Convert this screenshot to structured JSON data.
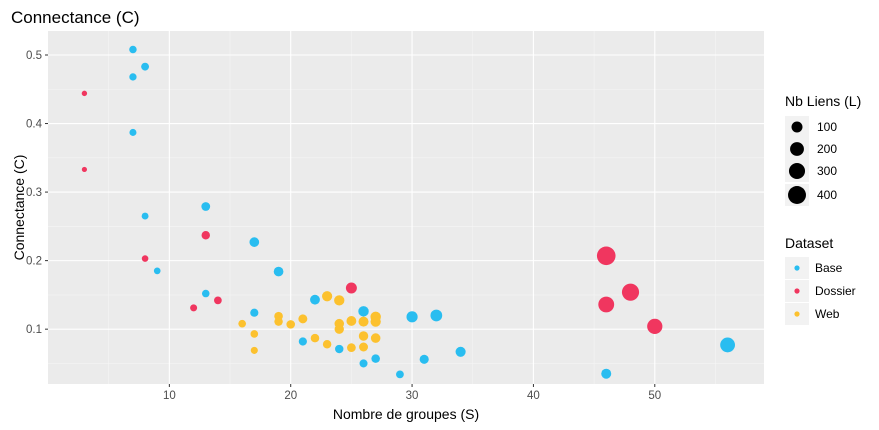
{
  "chart_data": {
    "type": "scatter",
    "title": "Connectance (C)",
    "xlabel": "Nombre de groupes (S)",
    "ylabel": "Connectance (C)",
    "xlim": [
      0,
      59
    ],
    "ylim": [
      0.02,
      0.535
    ],
    "x_ticks": [
      10,
      20,
      30,
      40,
      50
    ],
    "y_ticks": [
      0.1,
      0.2,
      0.3,
      0.4,
      0.5
    ],
    "grid": true,
    "panel_background": "#ebebeb",
    "size_legend": {
      "title": "Nb Liens (L)",
      "values": [
        100,
        200,
        300,
        400
      ]
    },
    "color_legend": {
      "title": "Dataset",
      "entries": [
        {
          "name": "Base",
          "color": "#29bdf0"
        },
        {
          "name": "Dossier",
          "color": "#f0365f"
        },
        {
          "name": "Web",
          "color": "#fcc12e"
        }
      ]
    },
    "series": [
      {
        "name": "Base",
        "color": "#29bdf0",
        "points": [
          {
            "x": 7,
            "y": 0.508,
            "L": 25
          },
          {
            "x": 8,
            "y": 0.483,
            "L": 31
          },
          {
            "x": 7,
            "y": 0.468,
            "L": 23
          },
          {
            "x": 7,
            "y": 0.387,
            "L": 19
          },
          {
            "x": 8,
            "y": 0.265,
            "L": 17
          },
          {
            "x": 9,
            "y": 0.185,
            "L": 15
          },
          {
            "x": 13,
            "y": 0.279,
            "L": 47
          },
          {
            "x": 13,
            "y": 0.152,
            "L": 26
          },
          {
            "x": 17,
            "y": 0.227,
            "L": 66
          },
          {
            "x": 17,
            "y": 0.124,
            "L": 36
          },
          {
            "x": 19,
            "y": 0.184,
            "L": 66
          },
          {
            "x": 21,
            "y": 0.082,
            "L": 36
          },
          {
            "x": 22,
            "y": 0.143,
            "L": 69
          },
          {
            "x": 24,
            "y": 0.071,
            "L": 41
          },
          {
            "x": 26,
            "y": 0.126,
            "L": 85
          },
          {
            "x": 26,
            "y": 0.05,
            "L": 34
          },
          {
            "x": 27,
            "y": 0.057,
            "L": 42
          },
          {
            "x": 29,
            "y": 0.034,
            "L": 29
          },
          {
            "x": 30,
            "y": 0.118,
            "L": 106
          },
          {
            "x": 31,
            "y": 0.056,
            "L": 54
          },
          {
            "x": 32,
            "y": 0.12,
            "L": 123
          },
          {
            "x": 34,
            "y": 0.067,
            "L": 77
          },
          {
            "x": 46,
            "y": 0.035,
            "L": 74
          },
          {
            "x": 56,
            "y": 0.077,
            "L": 241
          }
        ]
      },
      {
        "name": "Dossier",
        "color": "#f0365f",
        "points": [
          {
            "x": 3,
            "y": 0.444,
            "L": 4
          },
          {
            "x": 3,
            "y": 0.333,
            "L": 3
          },
          {
            "x": 8,
            "y": 0.203,
            "L": 13
          },
          {
            "x": 12,
            "y": 0.131,
            "L": 19
          },
          {
            "x": 13,
            "y": 0.237,
            "L": 40
          },
          {
            "x": 14,
            "y": 0.142,
            "L": 28
          },
          {
            "x": 25,
            "y": 0.16,
            "L": 100
          },
          {
            "x": 46,
            "y": 0.207,
            "L": 438
          },
          {
            "x": 46,
            "y": 0.136,
            "L": 288
          },
          {
            "x": 48,
            "y": 0.154,
            "L": 355
          },
          {
            "x": 50,
            "y": 0.104,
            "L": 260
          }
        ]
      },
      {
        "name": "Web",
        "color": "#fcc12e",
        "points": [
          {
            "x": 16,
            "y": 0.108,
            "L": 28
          },
          {
            "x": 17,
            "y": 0.093,
            "L": 27
          },
          {
            "x": 17,
            "y": 0.069,
            "L": 20
          },
          {
            "x": 19,
            "y": 0.119,
            "L": 43
          },
          {
            "x": 19,
            "y": 0.111,
            "L": 40
          },
          {
            "x": 20,
            "y": 0.107,
            "L": 43
          },
          {
            "x": 21,
            "y": 0.115,
            "L": 51
          },
          {
            "x": 22,
            "y": 0.087,
            "L": 42
          },
          {
            "x": 23,
            "y": 0.148,
            "L": 78
          },
          {
            "x": 23,
            "y": 0.078,
            "L": 41
          },
          {
            "x": 24,
            "y": 0.142,
            "L": 82
          },
          {
            "x": 24,
            "y": 0.108,
            "L": 62
          },
          {
            "x": 24,
            "y": 0.1,
            "L": 58
          },
          {
            "x": 25,
            "y": 0.112,
            "L": 70
          },
          {
            "x": 25,
            "y": 0.073,
            "L": 46
          },
          {
            "x": 26,
            "y": 0.111,
            "L": 75
          },
          {
            "x": 26,
            "y": 0.09,
            "L": 61
          },
          {
            "x": 26,
            "y": 0.074,
            "L": 50
          },
          {
            "x": 27,
            "y": 0.118,
            "L": 86
          },
          {
            "x": 27,
            "y": 0.111,
            "L": 81
          },
          {
            "x": 27,
            "y": 0.087,
            "L": 63
          }
        ]
      }
    ]
  }
}
